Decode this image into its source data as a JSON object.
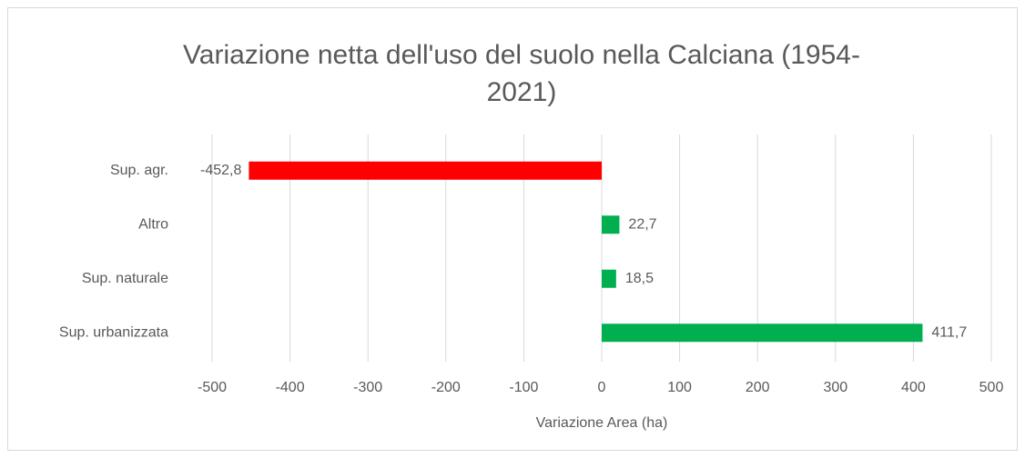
{
  "chart_data": {
    "type": "hbar",
    "title": "Variazione netta dell'uso del suolo nella Calciana (1954-2021)",
    "x_label": "Variazione Area (ha)",
    "categories": [
      "Sup. agr.",
      "Altro",
      "Sup. naturale",
      "Sup. urbanizzata"
    ],
    "values": [
      -452.8,
      22.7,
      18.5,
      411.7
    ],
    "value_labels": [
      "-452,8",
      "22,7",
      "18,5",
      "411,7"
    ],
    "colors": [
      "#ff0000",
      "#00b050",
      "#00b050",
      "#00b050"
    ],
    "xlim": [
      -500,
      500
    ],
    "xticks": [
      -500,
      -400,
      -300,
      -200,
      -100,
      0,
      100,
      200,
      300,
      400,
      500
    ],
    "grid": true
  }
}
